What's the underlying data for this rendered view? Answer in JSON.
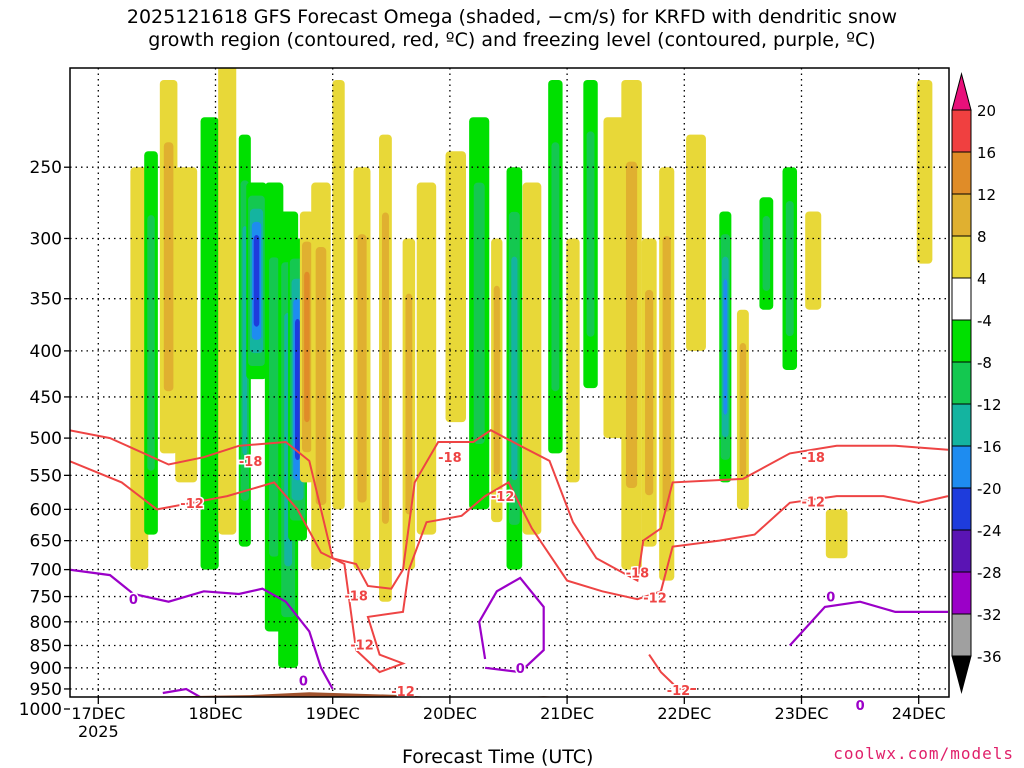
{
  "title": "2025121618 GFS Forecast Omega (shaded, −cm/s) for KRFD with dendritic snow\ngrowth region (contoured, red, ºC) and freezing level (contoured, purple, ºC)",
  "credit": "coolwx.com/models",
  "chart_data": {
    "type": "heatmap",
    "title": "2025121618 GFS Forecast Omega (shaded, −cm/s) for KRFD with dendritic snow growth region (contoured, red, ºC) and freezing level (contoured, purple, ºC)",
    "xlabel": "Forecast Time (UTC)",
    "ylabel": "",
    "x_ticks": [
      "17DEC\n2025",
      "18DEC",
      "19DEC",
      "20DEC",
      "21DEC",
      "22DEC",
      "23DEC",
      "24DEC"
    ],
    "x_range_days": [
      16.75,
      24.25
    ],
    "y_ticks": [
      250,
      300,
      350,
      400,
      450,
      500,
      550,
      600,
      650,
      700,
      750,
      800,
      850,
      900,
      950,
      1000
    ],
    "y_range_hpa": [
      200,
      1000
    ],
    "y_scale": "pressure",
    "grid": true,
    "colorbar": {
      "levels": [
        -36,
        -32,
        -28,
        -24,
        -20,
        -16,
        -12,
        -8,
        -4,
        4,
        8,
        12,
        16,
        20
      ],
      "colors": [
        "#000000",
        "#a0a0a0",
        "#9b00c8",
        "#5a14b4",
        "#1e3cdc",
        "#1e8cf0",
        "#14b4a0",
        "#14c850",
        "#00e000",
        "#ffffff",
        "#e8d838",
        "#e0b030",
        "#e08c28",
        "#f04040",
        "#e8107a"
      ]
    },
    "contours": [
      {
        "name": "freezing level",
        "color": "#9b00c8",
        "label": "0"
      },
      {
        "name": "dendritic snow growth region",
        "color": "#ee4444",
        "labels": [
          "-12",
          "-18"
        ]
      }
    ],
    "ground_color": "#a0522d"
  }
}
